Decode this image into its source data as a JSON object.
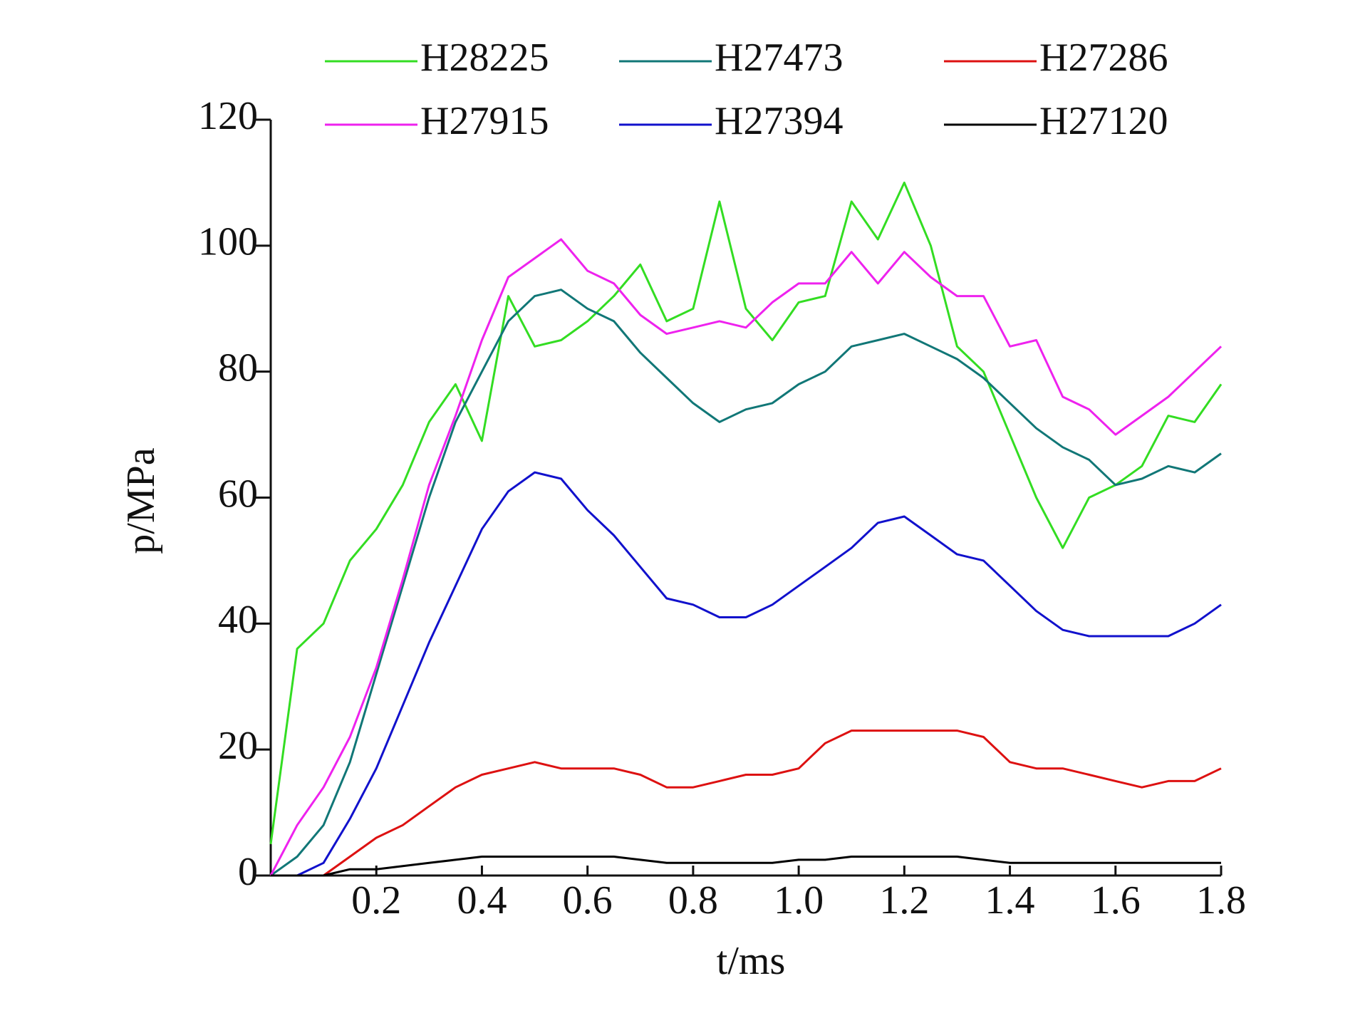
{
  "chart_data": {
    "type": "line",
    "xlabel": "t/ms",
    "ylabel": "p/MPa",
    "xlim": [
      0,
      1.8
    ],
    "ylim": [
      0,
      120
    ],
    "xticks": [
      0.2,
      0.4,
      0.6,
      0.8,
      {
        "value": 1,
        "label": "1.0"
      },
      1.2,
      1.4,
      1.6,
      1.8
    ],
    "yticks": [
      0,
      20,
      40,
      60,
      80,
      100,
      120
    ],
    "x": [
      0,
      0.05,
      0.1,
      0.15,
      0.2,
      0.25,
      0.3,
      0.35,
      0.4,
      0.45,
      0.5,
      0.55,
      0.6,
      0.65,
      0.7,
      0.75,
      0.8,
      0.85,
      0.9,
      0.95,
      1.0,
      1.05,
      1.1,
      1.15,
      1.2,
      1.25,
      1.3,
      1.35,
      1.4,
      1.45,
      1.5,
      1.55,
      1.6,
      1.65,
      1.7,
      1.75,
      1.8
    ],
    "series": [
      {
        "name": "H28225",
        "color": "#33dd22",
        "values": [
          5,
          36,
          40,
          50,
          55,
          62,
          72,
          78,
          69,
          92,
          84,
          85,
          88,
          92,
          97,
          88,
          90,
          107,
          90,
          85,
          91,
          92,
          107,
          101,
          110,
          100,
          84,
          80,
          70,
          60,
          52,
          60,
          62,
          65,
          73,
          72,
          78
        ]
      },
      {
        "name": "H27473",
        "color": "#117777",
        "values": [
          0,
          3,
          8,
          18,
          32,
          46,
          60,
          72,
          80,
          88,
          92,
          93,
          90,
          88,
          83,
          79,
          75,
          72,
          74,
          75,
          78,
          80,
          84,
          85,
          86,
          84,
          82,
          79,
          75,
          71,
          68,
          66,
          62,
          63,
          65,
          64,
          67
        ]
      },
      {
        "name": "H27286",
        "color": "#dd1111",
        "values": [
          0,
          0,
          0,
          3,
          6,
          8,
          11,
          14,
          16,
          17,
          18,
          17,
          17,
          17,
          16,
          14,
          14,
          15,
          16,
          16,
          17,
          21,
          23,
          23,
          23,
          23,
          23,
          22,
          18,
          17,
          17,
          16,
          15,
          14,
          15,
          15,
          17
        ]
      },
      {
        "name": "H27915",
        "color": "#ee22ee",
        "values": [
          0,
          8,
          14,
          22,
          33,
          47,
          62,
          73,
          85,
          95,
          98,
          101,
          96,
          94,
          89,
          86,
          87,
          88,
          87,
          91,
          94,
          94,
          99,
          94,
          99,
          95,
          92,
          92,
          84,
          85,
          76,
          74,
          70,
          73,
          76,
          80,
          84
        ]
      },
      {
        "name": "H27394",
        "color": "#1111cc",
        "values": [
          0,
          0,
          2,
          9,
          17,
          27,
          37,
          46,
          55,
          61,
          64,
          63,
          58,
          54,
          49,
          44,
          43,
          41,
          41,
          43,
          46,
          49,
          52,
          56,
          57,
          54,
          51,
          50,
          46,
          42,
          39,
          38,
          38,
          38,
          38,
          40,
          43
        ]
      },
      {
        "name": "H27120",
        "color": "#000000",
        "values": [
          0,
          0,
          0,
          1,
          1,
          1.5,
          2,
          2.5,
          3,
          3,
          3,
          3,
          3,
          3,
          2.5,
          2,
          2,
          2,
          2,
          2,
          2.5,
          2.5,
          3,
          3,
          3,
          3,
          3,
          2.5,
          2,
          2,
          2,
          2,
          2,
          2,
          2,
          2,
          2
        ]
      }
    ]
  }
}
